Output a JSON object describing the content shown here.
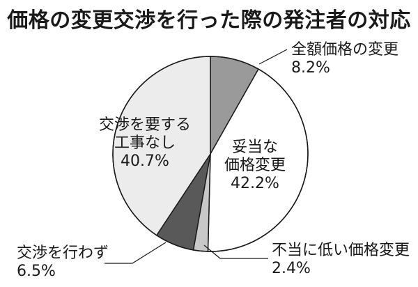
{
  "chart_data": {
    "type": "pie",
    "title": "価格の変更交渉を行った際の発注者の対応",
    "slices": [
      {
        "label_lines": [
          "全額価格の変更"
        ],
        "value": 8.2,
        "value_text": "8.2%",
        "color": "#9a9a9a"
      },
      {
        "label_lines": [
          "妥当な",
          "価格変更"
        ],
        "value": 42.2,
        "value_text": "42.2%",
        "color": "#ffffff"
      },
      {
        "label_lines": [
          "不当に低い価格変更"
        ],
        "value": 2.4,
        "value_text": "2.4%",
        "color": "#c8c8c8"
      },
      {
        "label_lines": [
          "交渉を行わず"
        ],
        "value": 6.5,
        "value_text": "6.5%",
        "color": "#595959"
      },
      {
        "label_lines": [
          "交渉を要する",
          "工事なし"
        ],
        "value": 40.7,
        "value_text": "40.7%",
        "color": "#ececec"
      }
    ]
  }
}
